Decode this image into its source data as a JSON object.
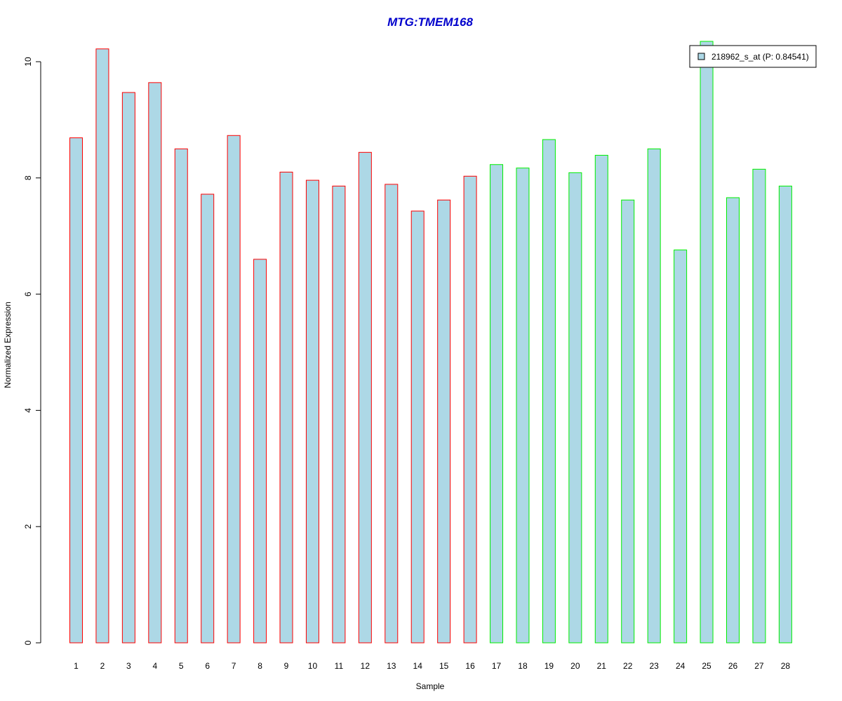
{
  "chart_data": {
    "type": "bar",
    "title": "MTG:TMEM168",
    "title_color": "#0000cc",
    "xlabel": "Sample",
    "ylabel": "Normalized Expression",
    "ylim": [
      0,
      10.4
    ],
    "y_ticks": [
      "0",
      "2",
      "4",
      "6",
      "8",
      "10"
    ],
    "categories": [
      "1",
      "2",
      "3",
      "4",
      "5",
      "6",
      "7",
      "8",
      "9",
      "10",
      "11",
      "12",
      "13",
      "14",
      "15",
      "16",
      "17",
      "18",
      "19",
      "20",
      "21",
      "22",
      "23",
      "24",
      "25",
      "26",
      "27",
      "28"
    ],
    "values": [
      8.69,
      10.22,
      9.47,
      9.64,
      8.5,
      7.72,
      8.73,
      6.6,
      8.1,
      7.96,
      7.86,
      8.44,
      7.89,
      7.43,
      7.62,
      8.03,
      8.23,
      8.17,
      8.66,
      8.09,
      8.39,
      7.62,
      8.5,
      6.76,
      10.35,
      7.66,
      8.15,
      7.86
    ],
    "bar_fill": "#add8e6",
    "group_colors": [
      "#ff0000",
      "#ff0000",
      "#ff0000",
      "#ff0000",
      "#ff0000",
      "#ff0000",
      "#ff0000",
      "#ff0000",
      "#ff0000",
      "#ff0000",
      "#ff0000",
      "#ff0000",
      "#ff0000",
      "#ff0000",
      "#ff0000",
      "#ff0000",
      "#00ee00",
      "#00ee00",
      "#00ee00",
      "#00ee00",
      "#00ee00",
      "#00ee00",
      "#00ee00",
      "#00ee00",
      "#00ee00",
      "#00ee00",
      "#00ee00",
      "#00ee00"
    ],
    "legend": {
      "label": "218962_s_at (P: 0.84541)",
      "position": "top-right"
    },
    "grid": false
  }
}
